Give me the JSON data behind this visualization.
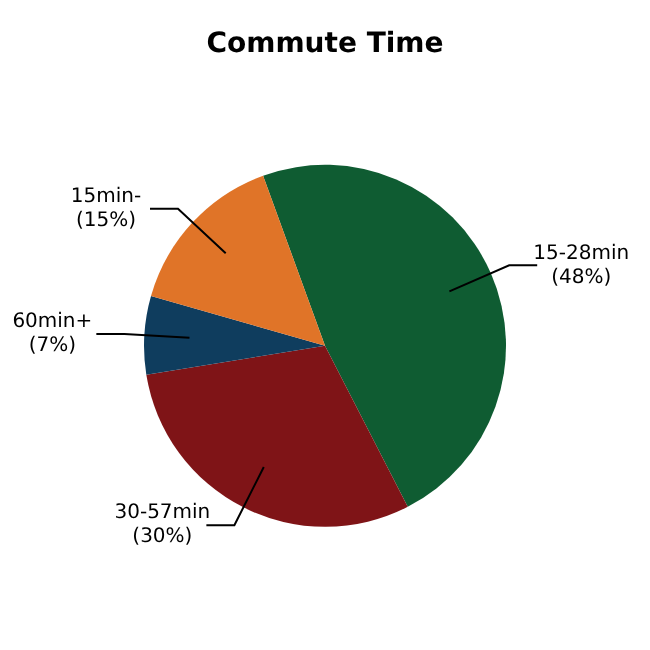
{
  "chart_data": {
    "type": "pie",
    "title": "Commute Time",
    "categories": [
      "15-28min",
      "30-57min",
      "60min+",
      "15min-"
    ],
    "values": [
      48,
      30,
      7,
      15
    ],
    "value_labels": [
      "(48%)",
      "(30%)",
      "(7%)",
      "(15%)"
    ],
    "colors": [
      "#0f5c32",
      "#7f1417",
      "#0f3d5e",
      "#e07428"
    ]
  }
}
